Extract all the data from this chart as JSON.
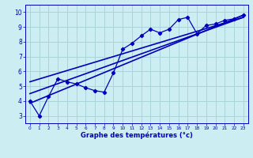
{
  "xlabel": "Graphe des températures (°c)",
  "bg_color": "#cceef2",
  "grid_color": "#aad4da",
  "line_color": "#0000bb",
  "xlim": [
    -0.5,
    23.5
  ],
  "ylim": [
    2.5,
    10.5
  ],
  "xticks": [
    0,
    1,
    2,
    3,
    4,
    5,
    6,
    7,
    8,
    9,
    10,
    11,
    12,
    13,
    14,
    15,
    16,
    17,
    18,
    19,
    20,
    21,
    22,
    23
  ],
  "yticks": [
    3,
    4,
    5,
    6,
    7,
    8,
    9,
    10
  ],
  "measured_x": [
    0,
    1,
    2,
    3,
    4,
    5,
    6,
    7,
    8,
    9,
    10,
    11,
    12,
    13,
    14,
    15,
    16,
    17,
    18,
    19,
    20,
    21,
    22,
    23
  ],
  "measured_y": [
    4.0,
    3.0,
    4.3,
    5.5,
    5.3,
    5.15,
    4.9,
    4.7,
    4.6,
    5.9,
    7.5,
    7.9,
    8.4,
    8.85,
    8.6,
    8.85,
    9.5,
    9.65,
    8.55,
    9.1,
    9.2,
    9.45,
    9.55,
    9.8
  ],
  "line1_x": [
    0,
    23
  ],
  "line1_y": [
    3.85,
    9.8
  ],
  "line2_x": [
    0,
    23
  ],
  "line2_y": [
    4.5,
    9.65
  ],
  "line3_x": [
    0,
    23
  ],
  "line3_y": [
    5.3,
    9.65
  ]
}
